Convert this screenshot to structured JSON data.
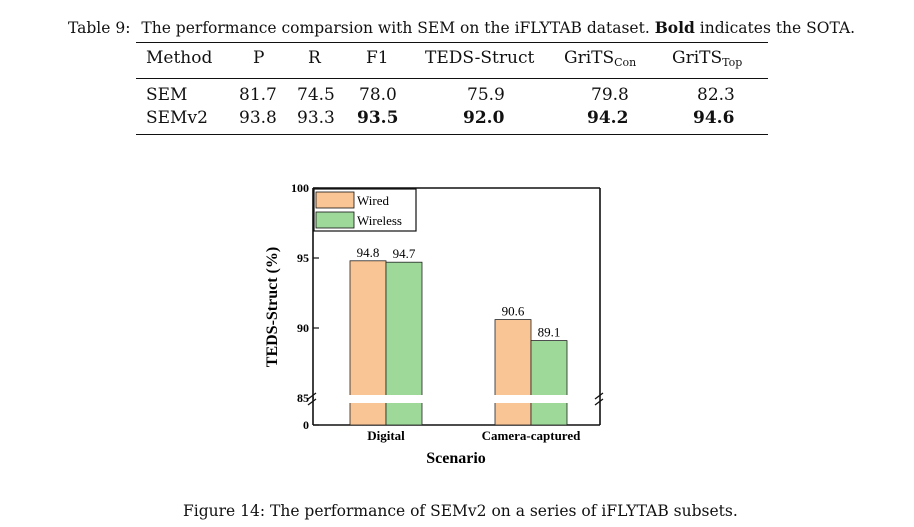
{
  "table": {
    "caption_label": "Table 9:",
    "caption_text_1": "The performance comparsion with SEM on the iFLYTAB dataset.",
    "caption_bold": "Bold",
    "caption_text_2": "indicates the SOTA.",
    "headers": {
      "method": "Method",
      "p": "P",
      "r": "R",
      "f1": "F1",
      "teds": "TEDS-Struct",
      "grits_con": "GriTS",
      "grits_con_sub": "Con",
      "grits_top": "GriTS",
      "grits_top_sub": "Top"
    },
    "rows": [
      {
        "method": "SEM",
        "p": "81.7",
        "r": "74.5",
        "f1": "78.0",
        "teds": "75.9",
        "grits_con": "79.8",
        "grits_top": "82.3"
      },
      {
        "method": "SEMv2",
        "p": "93.8",
        "r": "93.3",
        "f1": "93.5",
        "teds": "92.0",
        "grits_con": "94.2",
        "grits_top": "94.6"
      }
    ]
  },
  "chart_data": {
    "type": "bar",
    "title": "",
    "xlabel": "Scenario",
    "ylabel": "TEDS-Struct (%)",
    "categories": [
      "Digital",
      "Camera-captured"
    ],
    "series": [
      {
        "name": "Wired",
        "color": "#F9C595",
        "values": [
          94.8,
          90.6
        ]
      },
      {
        "name": "Wireless",
        "color": "#9ED99A",
        "values": [
          94.7,
          89.1
        ]
      }
    ],
    "data_labels": [
      [
        "94.8",
        "94.7"
      ],
      [
        "90.6",
        "89.1"
      ]
    ],
    "ylim": [
      85,
      100
    ],
    "yticks": [
      "100",
      "95",
      "90",
      "85",
      "0"
    ],
    "axis_break": true,
    "legend": "top-left"
  },
  "figure": {
    "caption": "Figure 14: The performance of SEMv2 on a series of iFLYTAB subsets."
  }
}
